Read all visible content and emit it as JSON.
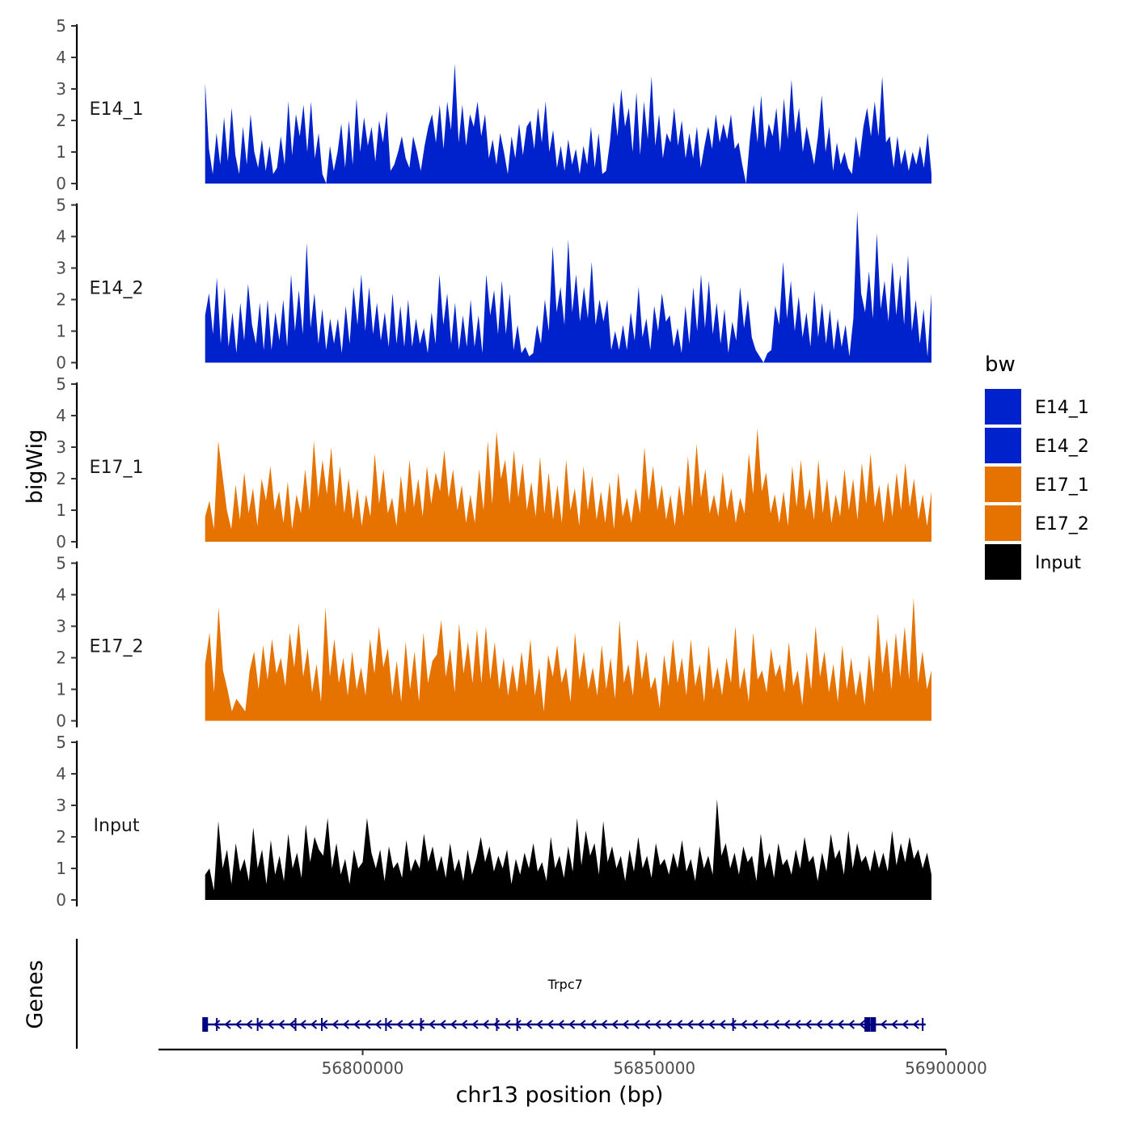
{
  "chart_data": {
    "type": "area",
    "chromosome": "chr13",
    "xlabel": "chr13 position (bp)",
    "xlim": [
      56765000,
      56900000
    ],
    "data_range": [
      56773000,
      56897500
    ],
    "x_ticks": [
      56800000,
      56850000,
      56900000
    ],
    "x_tick_labels": [
      "56800000",
      "56850000",
      "56900000"
    ],
    "ylabel": "bigWig",
    "ylim": [
      0,
      5
    ],
    "y_ticks": [
      0,
      1,
      2,
      3,
      4,
      5
    ],
    "y_tick_labels": [
      "0",
      "1",
      "2",
      "3",
      "4",
      "5"
    ],
    "legend": {
      "title": "bw",
      "position": "right",
      "entries": [
        {
          "label": "E14_1",
          "color": "#0022cc"
        },
        {
          "label": "E14_2",
          "color": "#0022cc"
        },
        {
          "label": "E17_1",
          "color": "#e67300"
        },
        {
          "label": "E17_2",
          "color": "#e67300"
        },
        {
          "label": "Input",
          "color": "#000000"
        }
      ]
    },
    "series": [
      {
        "name": "E14_1",
        "color": "#0022cc",
        "values": [
          3.2,
          1.1,
          0.3,
          1.6,
          0.6,
          2.1,
          0.7,
          2.4,
          0.9,
          0.3,
          1.8,
          0.6,
          2.2,
          1.0,
          0.5,
          1.4,
          0.4,
          1.2,
          0.3,
          0.5,
          1.5,
          0.6,
          2.6,
          0.9,
          2.2,
          1.5,
          2.5,
          1.0,
          2.6,
          0.8,
          1.6,
          0.3,
          0.0,
          1.2,
          0.4,
          1.0,
          1.9,
          0.5,
          2.0,
          0.6,
          2.7,
          1.0,
          2.1,
          1.2,
          1.8,
          0.7,
          2.0,
          1.3,
          2.3,
          0.4,
          0.6,
          1.0,
          1.5,
          0.8,
          0.5,
          1.5,
          1.0,
          0.4,
          1.2,
          1.8,
          2.2,
          1.3,
          2.5,
          1.1,
          2.6,
          1.7,
          3.8,
          1.3,
          2.5,
          1.2,
          2.2,
          1.8,
          2.6,
          1.5,
          2.2,
          0.8,
          1.4,
          0.6,
          1.6,
          1.0,
          0.3,
          1.5,
          0.8,
          1.9,
          0.9,
          1.8,
          2.0,
          1.1,
          2.4,
          1.3,
          2.6,
          1.0,
          1.7,
          0.5,
          1.2,
          0.4,
          1.4,
          0.6,
          1.1,
          0.3,
          1.2,
          0.6,
          1.8,
          0.5,
          1.6,
          0.3,
          0.4,
          1.3,
          2.6,
          1.5,
          3.0,
          1.8,
          2.4,
          1.0,
          2.9,
          0.9,
          2.6,
          1.4,
          3.4,
          1.2,
          2.2,
          0.8,
          1.6,
          1.3,
          2.4,
          1.2,
          2.0,
          0.8,
          1.6,
          0.8,
          1.8,
          0.5,
          1.2,
          1.8,
          1.1,
          2.2,
          1.3,
          1.9,
          1.4,
          2.2,
          1.1,
          1.3,
          0.6,
          0.0,
          1.4,
          2.5,
          1.3,
          2.8,
          1.1,
          1.9,
          1.5,
          2.4,
          1.0,
          2.7,
          1.4,
          3.3,
          1.6,
          2.4,
          1.0,
          1.8,
          1.2,
          0.6,
          1.5,
          2.8,
          1.0,
          1.8,
          0.4,
          1.3,
          0.6,
          1.0,
          0.5,
          0.3,
          1.5,
          0.8,
          1.8,
          2.4,
          1.5,
          2.6,
          1.5,
          3.4,
          1.3,
          1.5,
          0.5,
          1.5,
          0.6,
          1.1,
          0.4,
          1.0,
          0.6,
          1.2,
          0.5,
          1.6,
          0.3
        ]
      },
      {
        "name": "E14_2",
        "color": "#0022cc",
        "values": [
          1.5,
          2.2,
          0.9,
          2.7,
          0.6,
          2.4,
          0.5,
          1.6,
          0.3,
          1.9,
          0.7,
          2.5,
          1.2,
          0.6,
          1.9,
          0.4,
          2.0,
          0.4,
          1.6,
          0.7,
          2.0,
          0.5,
          2.8,
          1.0,
          2.3,
          0.9,
          3.8,
          1.1,
          2.2,
          0.6,
          1.7,
          0.4,
          1.4,
          0.6,
          1.4,
          0.3,
          1.8,
          0.6,
          2.4,
          1.2,
          2.8,
          1.0,
          2.4,
          0.9,
          1.9,
          0.7,
          1.6,
          0.5,
          2.2,
          0.6,
          1.8,
          0.5,
          2.0,
          0.5,
          1.4,
          0.6,
          1.1,
          0.3,
          1.6,
          0.6,
          2.8,
          1.2,
          2.2,
          0.6,
          1.9,
          0.4,
          1.5,
          0.5,
          2.0,
          0.5,
          1.5,
          0.3,
          2.8,
          1.5,
          2.3,
          0.9,
          2.6,
          0.9,
          2.2,
          0.4,
          1.2,
          0.3,
          0.5,
          0.2,
          0.3,
          1.2,
          0.6,
          2.0,
          1.0,
          3.7,
          1.6,
          2.4,
          1.2,
          3.9,
          1.6,
          2.8,
          1.3,
          2.4,
          1.4,
          3.2,
          1.2,
          2.0,
          1.3,
          2.0,
          0.4,
          1.0,
          0.4,
          1.2,
          0.4,
          1.6,
          0.7,
          2.4,
          0.8,
          1.4,
          0.4,
          1.8,
          1.0,
          2.2,
          1.3,
          1.5,
          0.5,
          1.1,
          0.3,
          1.8,
          0.6,
          2.4,
          1.0,
          2.8,
          1.1,
          2.6,
          0.9,
          1.9,
          0.6,
          1.7,
          0.3,
          1.3,
          0.7,
          2.4,
          1.1,
          2.0,
          0.8,
          0.4,
          0.2,
          0.0,
          0.3,
          0.4,
          1.8,
          1.2,
          3.2,
          1.4,
          2.6,
          1.0,
          2.1,
          0.8,
          1.6,
          0.5,
          2.3,
          0.8,
          1.9,
          0.6,
          1.7,
          0.4,
          1.4,
          0.5,
          1.2,
          0.2,
          1.4,
          4.8,
          2.2,
          1.6,
          2.9,
          1.4,
          4.1,
          1.7,
          2.6,
          1.3,
          3.2,
          1.5,
          2.8,
          1.2,
          3.4,
          1.0,
          2.0,
          0.6,
          1.7,
          0.2,
          2.2
        ]
      },
      {
        "name": "E17_1",
        "color": "#e67300",
        "values": [
          0.8,
          1.3,
          0.4,
          3.2,
          2.1,
          1.0,
          0.4,
          1.8,
          0.7,
          2.2,
          0.9,
          1.7,
          0.5,
          2.0,
          1.3,
          2.4,
          1.0,
          1.6,
          0.6,
          1.9,
          0.4,
          1.5,
          0.9,
          2.3,
          1.0,
          3.2,
          1.4,
          2.6,
          1.5,
          3.0,
          1.1,
          2.4,
          0.9,
          2.0,
          0.7,
          1.7,
          0.5,
          1.5,
          0.8,
          2.8,
          1.2,
          2.3,
          0.9,
          1.4,
          0.5,
          2.1,
          0.9,
          2.6,
          1.1,
          2.0,
          0.8,
          2.4,
          1.2,
          2.2,
          1.6,
          2.9,
          1.4,
          2.3,
          1.0,
          1.8,
          0.6,
          1.5,
          0.6,
          2.3,
          1.0,
          3.2,
          1.2,
          3.5,
          2.0,
          2.6,
          1.2,
          2.9,
          1.4,
          2.5,
          1.0,
          1.9,
          0.8,
          2.7,
          0.9,
          2.2,
          0.7,
          1.8,
          0.6,
          2.6,
          1.0,
          1.7,
          0.5,
          2.4,
          1.0,
          2.1,
          0.7,
          1.6,
          0.6,
          1.9,
          0.4,
          2.2,
          0.8,
          1.4,
          0.6,
          1.7,
          0.9,
          3.0,
          1.3,
          2.4,
          1.0,
          1.8,
          0.7,
          1.5,
          0.5,
          1.8,
          0.8,
          2.7,
          1.1,
          3.1,
          1.4,
          2.3,
          0.9,
          1.5,
          0.8,
          2.2,
          1.0,
          1.7,
          0.6,
          1.4,
          0.9,
          2.8,
          1.5,
          3.6,
          1.6,
          2.2,
          0.9,
          1.5,
          0.6,
          1.6,
          0.5,
          2.4,
          1.1,
          2.6,
          1.0,
          1.7,
          0.7,
          2.6,
          0.9,
          2.0,
          0.6,
          1.5,
          0.8,
          2.3,
          1.0,
          2.0,
          0.7,
          2.5,
          1.2,
          2.8,
          1.1,
          1.8,
          0.6,
          1.9,
          0.8,
          2.2,
          1.0,
          2.5,
          1.1,
          2.0,
          0.7,
          1.5,
          0.5,
          1.6
        ]
      },
      {
        "name": "E17_2",
        "color": "#e67300",
        "values": [
          1.8,
          2.8,
          0.9,
          3.6,
          1.6,
          1.0,
          0.3,
          0.7,
          0.5,
          0.3,
          1.6,
          2.2,
          1.0,
          2.4,
          1.3,
          2.6,
          1.5,
          2.0,
          1.1,
          2.8,
          1.7,
          3.1,
          1.4,
          2.3,
          0.9,
          1.8,
          0.6,
          3.6,
          1.4,
          2.6,
          1.2,
          2.0,
          0.8,
          2.2,
          1.0,
          1.7,
          0.8,
          2.6,
          1.5,
          3.0,
          1.7,
          2.3,
          0.8,
          1.9,
          0.6,
          2.5,
          1.0,
          2.2,
          0.6,
          2.8,
          1.2,
          1.9,
          2.1,
          3.2,
          1.4,
          2.3,
          0.9,
          3.1,
          1.5,
          2.5,
          1.2,
          2.9,
          1.2,
          3.0,
          1.3,
          2.5,
          1.0,
          2.0,
          0.8,
          1.8,
          0.9,
          2.2,
          1.1,
          2.6,
          0.8,
          1.7,
          0.3,
          2.1,
          1.4,
          2.4,
          1.2,
          1.7,
          0.6,
          2.8,
          1.3,
          2.2,
          1.0,
          1.7,
          0.8,
          2.4,
          1.0,
          2.0,
          0.7,
          3.2,
          1.2,
          1.8,
          0.8,
          2.6,
          1.3,
          2.2,
          1.0,
          1.4,
          0.4,
          2.1,
          1.1,
          2.6,
          1.2,
          2.0,
          0.8,
          2.6,
          1.1,
          1.8,
          0.6,
          2.4,
          1.0,
          1.7,
          0.8,
          2.0,
          1.2,
          3.0,
          1.0,
          1.7,
          0.6,
          2.8,
          1.3,
          1.6,
          0.9,
          2.3,
          1.4,
          1.8,
          0.9,
          2.5,
          1.1,
          1.6,
          0.5,
          2.2,
          1.0,
          3.0,
          1.4,
          2.2,
          0.9,
          1.8,
          0.6,
          2.4,
          1.0,
          2.0,
          0.8,
          1.6,
          0.5,
          2.1,
          0.9,
          3.4,
          1.5,
          2.6,
          1.0,
          2.8,
          1.4,
          3.0,
          1.3,
          3.9,
          1.2,
          2.2,
          1.0,
          1.6
        ]
      },
      {
        "name": "Input",
        "color": "#000000",
        "values": [
          0.8,
          1.0,
          0.3,
          2.5,
          1.0,
          1.6,
          0.5,
          1.8,
          0.9,
          1.3,
          0.6,
          2.3,
          1.0,
          1.6,
          0.5,
          1.9,
          0.8,
          1.4,
          0.6,
          2.1,
          1.0,
          1.5,
          0.7,
          2.4,
          1.2,
          2.0,
          1.6,
          1.4,
          2.6,
          1.0,
          1.8,
          0.8,
          1.3,
          0.5,
          1.6,
          1.0,
          1.2,
          2.6,
          1.5,
          1.0,
          1.6,
          0.6,
          1.7,
          1.0,
          1.2,
          0.7,
          1.9,
          0.9,
          1.3,
          1.0,
          2.1,
          1.2,
          1.7,
          0.9,
          1.4,
          0.7,
          1.8,
          0.9,
          1.3,
          0.6,
          1.6,
          0.8,
          1.3,
          2.0,
          1.2,
          1.7,
          0.9,
          1.4,
          1.0,
          1.6,
          0.5,
          1.3,
          0.8,
          1.5,
          1.0,
          1.8,
          0.9,
          1.2,
          0.6,
          2.0,
          1.0,
          1.4,
          0.7,
          1.7,
          0.9,
          2.6,
          1.1,
          2.2,
          1.4,
          1.8,
          0.8,
          2.5,
          1.2,
          1.7,
          1.0,
          1.4,
          0.6,
          1.6,
          0.9,
          2.0,
          1.0,
          1.4,
          0.7,
          1.8,
          1.1,
          1.3,
          0.8,
          1.5,
          1.0,
          1.9,
          0.9,
          1.3,
          0.6,
          1.7,
          1.0,
          1.4,
          0.8,
          3.2,
          1.4,
          1.8,
          1.0,
          1.5,
          0.8,
          1.7,
          1.2,
          1.4,
          0.6,
          2.1,
          1.0,
          1.5,
          0.7,
          1.8,
          1.1,
          1.3,
          0.8,
          1.6,
          1.0,
          2.0,
          1.2,
          1.4,
          0.6,
          1.5,
          0.9,
          2.1,
          1.3,
          1.6,
          0.8,
          2.2,
          1.0,
          1.8,
          1.2,
          1.4,
          0.9,
          1.6,
          1.0,
          1.5,
          0.9,
          2.2,
          1.1,
          1.8,
          1.2,
          2.0,
          1.3,
          1.6,
          1.0,
          1.5,
          0.8
        ]
      }
    ],
    "genes_track": {
      "ylabel": "Genes",
      "gene": {
        "name": "Trpc7",
        "start": 56773000,
        "end": 56896500,
        "strand": "-",
        "exons": [
          56773000,
          56775000,
          56782000,
          56788500,
          56793000,
          56804000,
          56810000,
          56823000,
          56826500,
          56863500,
          56886500,
          56887500,
          56896000
        ]
      }
    }
  }
}
